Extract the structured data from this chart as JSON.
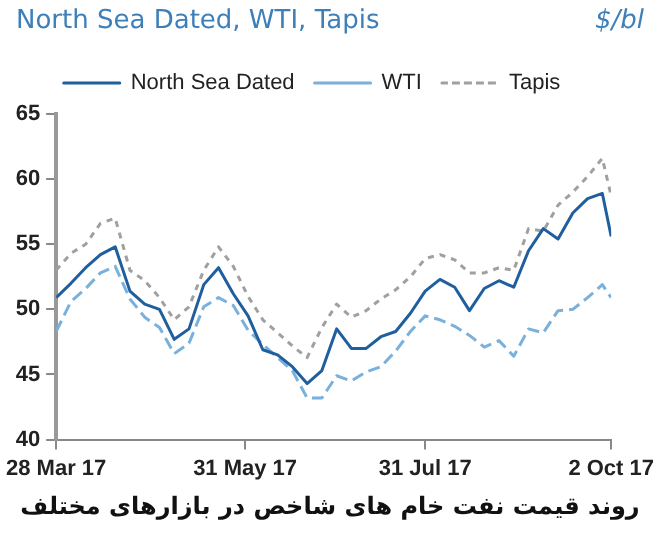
{
  "chart_data": {
    "type": "line",
    "title": "North Sea Dated, WTI, Tapis",
    "ylabel": "$/bl",
    "annotations": [
      "روند قیمت نفت خام های شاخص در بازارهای مختلف"
    ],
    "x": [
      "2017-03-28",
      "2017-04-02",
      "2017-04-07",
      "2017-04-12",
      "2017-04-17",
      "2017-04-22",
      "2017-04-27",
      "2017-05-02",
      "2017-05-07",
      "2017-05-12",
      "2017-05-17",
      "2017-05-22",
      "2017-05-27",
      "2017-06-01",
      "2017-06-06",
      "2017-06-11",
      "2017-06-16",
      "2017-06-21",
      "2017-06-26",
      "2017-07-01",
      "2017-07-06",
      "2017-07-11",
      "2017-07-16",
      "2017-07-21",
      "2017-07-26",
      "2017-07-31",
      "2017-08-05",
      "2017-08-10",
      "2017-08-15",
      "2017-08-20",
      "2017-08-25",
      "2017-08-30",
      "2017-09-04",
      "2017-09-09",
      "2017-09-14",
      "2017-09-19",
      "2017-09-24",
      "2017-09-29",
      "2017-10-02"
    ],
    "series": [
      {
        "name": "North Sea Dated",
        "color": "#1f5f9e",
        "line_style": "solid",
        "values": [
          50.9,
          52.0,
          53.2,
          54.2,
          54.8,
          51.4,
          50.4,
          50.0,
          47.7,
          48.5,
          51.9,
          53.2,
          51.2,
          49.5,
          46.9,
          46.5,
          45.6,
          44.3,
          45.3,
          48.5,
          47.0,
          47.0,
          47.9,
          48.3,
          49.7,
          51.4,
          52.3,
          51.7,
          49.9,
          51.6,
          52.2,
          51.7,
          54.5,
          56.2,
          55.4,
          57.4,
          58.5,
          58.9,
          55.6
        ]
      },
      {
        "name": "WTI",
        "color": "#7ab0dc",
        "line_style": "dashed",
        "values": [
          48.3,
          50.6,
          51.6,
          52.8,
          53.3,
          50.8,
          49.4,
          48.6,
          46.6,
          47.4,
          50.2,
          50.9,
          50.3,
          48.4,
          47.3,
          46.3,
          45.3,
          43.2,
          43.2,
          44.9,
          44.5,
          45.2,
          45.6,
          46.8,
          48.3,
          49.5,
          49.2,
          48.7,
          48.0,
          47.1,
          47.6,
          46.4,
          48.5,
          48.2,
          49.9,
          50.0,
          50.9,
          51.9,
          50.9
        ]
      },
      {
        "name": "Tapis",
        "color": "#a0a0a0",
        "line_style": "dotted",
        "values": [
          53.0,
          54.3,
          55.0,
          56.6,
          57.0,
          53.0,
          52.2,
          50.9,
          49.2,
          50.2,
          53.0,
          54.8,
          53.3,
          51.0,
          49.2,
          48.2,
          47.2,
          46.3,
          48.6,
          50.4,
          49.4,
          49.9,
          50.8,
          51.5,
          52.5,
          53.9,
          54.2,
          53.8,
          52.8,
          52.8,
          53.2,
          53.0,
          56.2,
          56.0,
          58.0,
          59.0,
          60.2,
          61.6,
          58.7
        ]
      }
    ],
    "xlim": [
      "2017-03-28",
      "2017-10-02"
    ],
    "xticks": [
      {
        "value": "2017-03-28",
        "label": "28 Mar 17"
      },
      {
        "value": "2017-05-31",
        "label": "31 May 17"
      },
      {
        "value": "2017-07-31",
        "label": "31 Jul 17"
      },
      {
        "value": "2017-10-02",
        "label": "2 Oct 17"
      }
    ],
    "ylim": [
      40,
      65
    ],
    "yticks": [
      40,
      45,
      50,
      55,
      60,
      65
    ],
    "grid": false,
    "legend": "top",
    "marker": "none"
  }
}
